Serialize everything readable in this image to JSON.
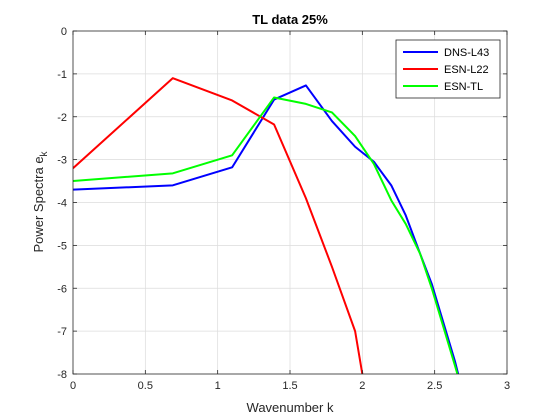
{
  "chart_data": {
    "type": "line",
    "title": "TL data 25%",
    "xlabel": "Wavenumber k",
    "ylabel_main": "Power Spectra e",
    "ylabel_sub": "k",
    "xlim": [
      0,
      3
    ],
    "ylim": [
      -8,
      0
    ],
    "xticks": [
      0,
      0.5,
      1,
      1.5,
      2,
      2.5,
      3
    ],
    "xtick_labels": [
      "0",
      "0.5",
      "1",
      "1.5",
      "2",
      "2.5",
      "3"
    ],
    "yticks": [
      -8,
      -7,
      -6,
      -5,
      -4,
      -3,
      -2,
      -1,
      0
    ],
    "ytick_labels": [
      "-8",
      "-7",
      "-6",
      "-5",
      "-4",
      "-3",
      "-2",
      "-1",
      "0"
    ],
    "grid": true,
    "legend_position": "top-right",
    "series": [
      {
        "name": "DNS-L43",
        "color": "#0000ff",
        "x": [
          0,
          0.69,
          1.1,
          1.39,
          1.61,
          1.79,
          1.95,
          2.08,
          2.2,
          2.3,
          2.4,
          2.48,
          2.56,
          2.64,
          2.7
        ],
        "y": [
          -3.7,
          -3.6,
          -3.18,
          -1.6,
          -1.27,
          -2.1,
          -2.7,
          -3.05,
          -3.6,
          -4.3,
          -5.2,
          -5.9,
          -6.8,
          -7.7,
          -8.5
        ]
      },
      {
        "name": "ESN-L22",
        "color": "#ff0000",
        "x": [
          0,
          0.69,
          1.1,
          1.39,
          1.61,
          1.79,
          1.95,
          2.01
        ],
        "y": [
          -3.2,
          -1.1,
          -1.62,
          -2.18,
          -3.9,
          -5.5,
          -7.0,
          -8.2
        ]
      },
      {
        "name": "ESN-TL",
        "color": "#00ff00",
        "x": [
          0,
          0.69,
          1.1,
          1.39,
          1.61,
          1.79,
          1.95,
          2.08,
          2.2,
          2.3,
          2.4,
          2.48,
          2.56,
          2.64,
          2.7
        ],
        "y": [
          -3.5,
          -3.32,
          -2.9,
          -1.55,
          -1.7,
          -1.9,
          -2.45,
          -3.1,
          -3.95,
          -4.5,
          -5.2,
          -6.0,
          -6.9,
          -7.8,
          -8.5
        ]
      }
    ]
  }
}
